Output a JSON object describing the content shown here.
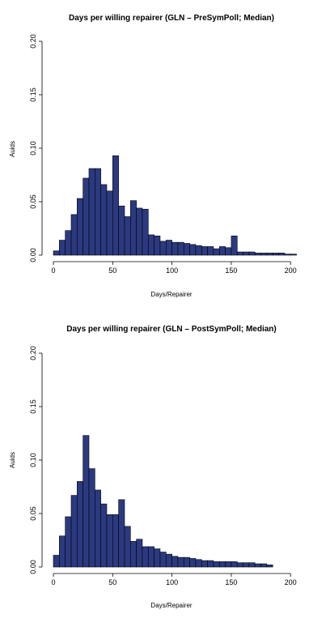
{
  "chart_data": [
    {
      "type": "bar",
      "title": "Days per willing repairer (GLN – PreSymPoll; Median)",
      "xlabel": "Days/Repairer",
      "ylabel": "Auids",
      "bin_width": 5,
      "x_start": 0,
      "xlim": [
        0,
        210
      ],
      "ylim": [
        0,
        0.2
      ],
      "xticks": [
        0,
        50,
        100,
        150,
        200
      ],
      "yticks": [
        0.0,
        0.05,
        0.1,
        0.15,
        0.2
      ],
      "ytick_labels": [
        "0.00",
        "0.05",
        "0.10",
        "0.15",
        "0.20"
      ],
      "bar_color": "#2b3a80",
      "values": [
        0.004,
        0.014,
        0.023,
        0.038,
        0.053,
        0.072,
        0.081,
        0.081,
        0.066,
        0.06,
        0.093,
        0.046,
        0.036,
        0.051,
        0.044,
        0.043,
        0.019,
        0.018,
        0.013,
        0.014,
        0.012,
        0.012,
        0.011,
        0.01,
        0.009,
        0.008,
        0.008,
        0.006,
        0.008,
        0.007,
        0.018,
        0.003,
        0.003,
        0.003,
        0.002,
        0.002,
        0.002,
        0.002,
        0.002,
        0.001,
        0.001
      ]
    },
    {
      "type": "bar",
      "title": "Days per willing repairer (GLN – PostSymPoll; Median)",
      "xlabel": "Days/Repairer",
      "ylabel": "Auids",
      "bin_width": 5,
      "x_start": 0,
      "xlim": [
        0,
        200
      ],
      "ylim": [
        0,
        0.2
      ],
      "xticks": [
        0,
        50,
        100,
        150,
        200
      ],
      "yticks": [
        0.0,
        0.05,
        0.1,
        0.15,
        0.2
      ],
      "ytick_labels": [
        "0.00",
        "0.05",
        "0.10",
        "0.15",
        "0.20"
      ],
      "bar_color": "#2b3a80",
      "values": [
        0.011,
        0.029,
        0.047,
        0.067,
        0.08,
        0.123,
        0.092,
        0.072,
        0.059,
        0.049,
        0.049,
        0.063,
        0.038,
        0.024,
        0.026,
        0.019,
        0.019,
        0.017,
        0.014,
        0.012,
        0.01,
        0.009,
        0.009,
        0.008,
        0.007,
        0.006,
        0.006,
        0.005,
        0.005,
        0.005,
        0.005,
        0.004,
        0.004,
        0.004,
        0.003,
        0.003,
        0.002
      ]
    }
  ]
}
